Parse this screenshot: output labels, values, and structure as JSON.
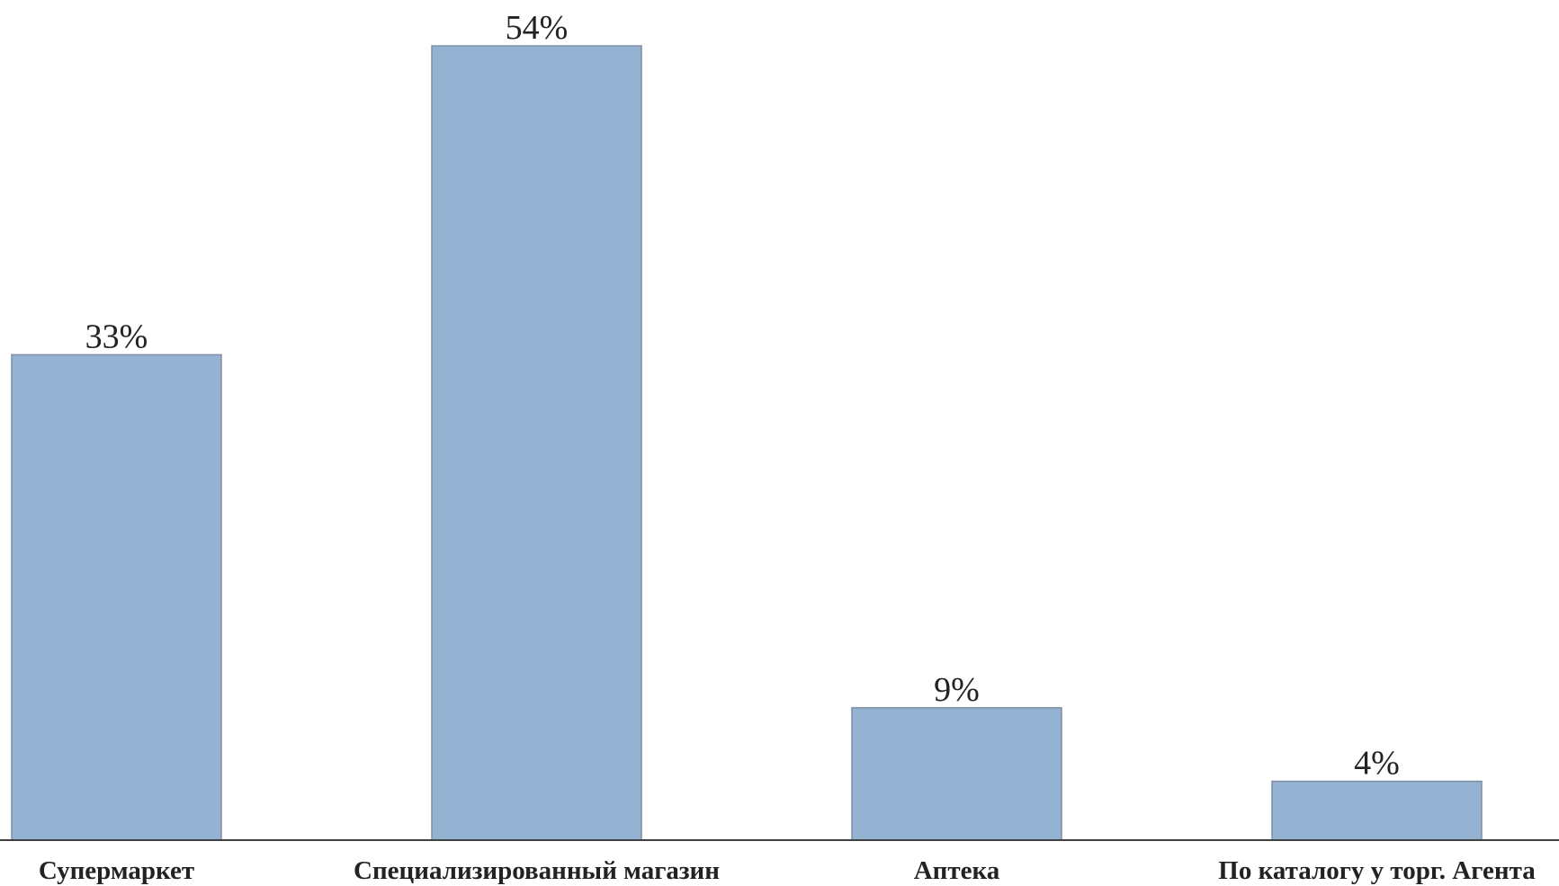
{
  "chart_data": {
    "type": "bar",
    "categories": [
      "Супермаркет",
      "Специализированный магазин",
      "Аптека",
      "По каталогу у торг. Агента"
    ],
    "values": [
      33,
      54,
      9,
      4
    ],
    "value_labels": [
      "33%",
      "54%",
      "9%",
      "4%"
    ],
    "unit": "%",
    "title": "",
    "xlabel": "",
    "ylabel": "",
    "ylim": [
      0,
      54
    ],
    "grid": false,
    "legend": "none",
    "bar_color": "#94b3d2",
    "bar_outline_color": "#7f8ea3",
    "axis_color": "#404040"
  }
}
